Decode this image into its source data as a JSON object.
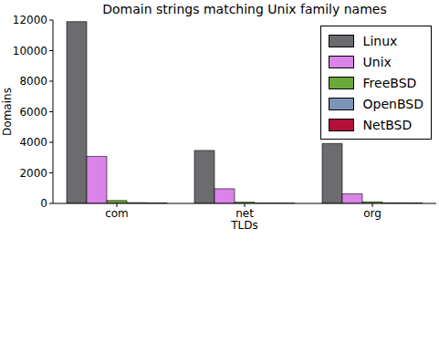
{
  "chart_data": {
    "type": "bar",
    "title": "Domain strings matching Unix family names",
    "x_label": "TLDs",
    "y_label": "Domains",
    "categories": [
      "com",
      "net",
      "org"
    ],
    "series": [
      {
        "name": "Linux",
        "color": "#6d6b70",
        "values": [
          11900,
          3470,
          3920
        ]
      },
      {
        "name": "Unix",
        "color": "#da83e8",
        "values": [
          3080,
          960,
          630
        ]
      },
      {
        "name": "FreeBSD",
        "color": "#6aa83a",
        "values": [
          190,
          80,
          100
        ]
      },
      {
        "name": "OpenBSD",
        "color": "#7b93b5",
        "values": [
          50,
          20,
          40
        ]
      },
      {
        "name": "NetBSD",
        "color": "#b5103a",
        "values": [
          30,
          15,
          30
        ]
      }
    ],
    "ylim": [
      0,
      12000
    ],
    "yticks": [
      0,
      2000,
      4000,
      6000,
      8000,
      10000,
      12000
    ],
    "grid": false,
    "legend": "upper right"
  }
}
